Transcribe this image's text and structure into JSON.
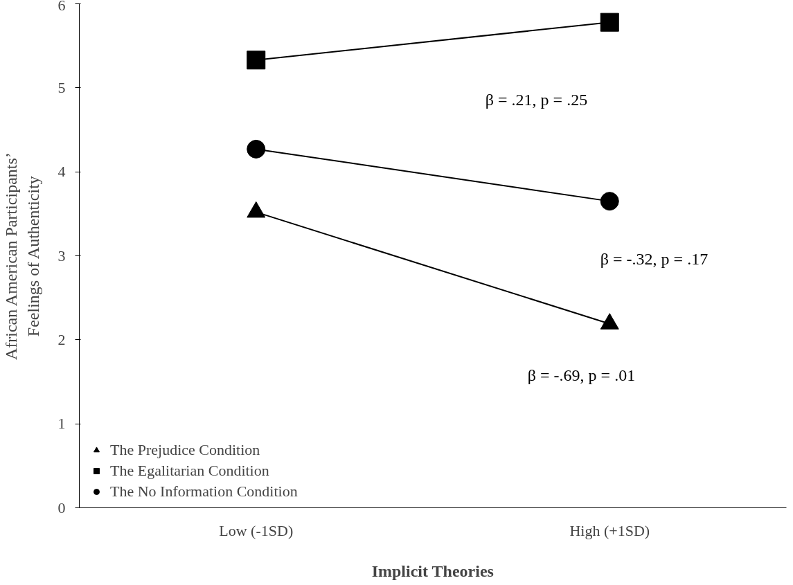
{
  "chart_data": {
    "type": "line",
    "xlabel": "Implicit Theories",
    "ylabel": "African American Participants’\nFeelings of Authenticity",
    "categories": [
      "Low (-1SD)",
      "High (+1SD)"
    ],
    "series": [
      {
        "name": "The Prejudice Condition",
        "color": "#000000",
        "marker": "triangle",
        "values": [
          3.52,
          2.19
        ]
      },
      {
        "name": "The Egalitarian Condition",
        "color": "#000000",
        "marker": "square",
        "values": [
          5.33,
          5.78
        ]
      },
      {
        "name": "The No Information Condition",
        "color": "#000000",
        "marker": "circle",
        "values": [
          4.27,
          3.65
        ]
      }
    ],
    "annotations": [
      "β = .21, p = .25",
      "β = -.32, p = .17",
      "β = -.69, p = .01"
    ],
    "ylim": [
      0,
      6
    ],
    "yticks": [
      0,
      1,
      2,
      3,
      4,
      5,
      6
    ],
    "grid": false,
    "legend": "bottom left",
    "line_style": "solid"
  }
}
